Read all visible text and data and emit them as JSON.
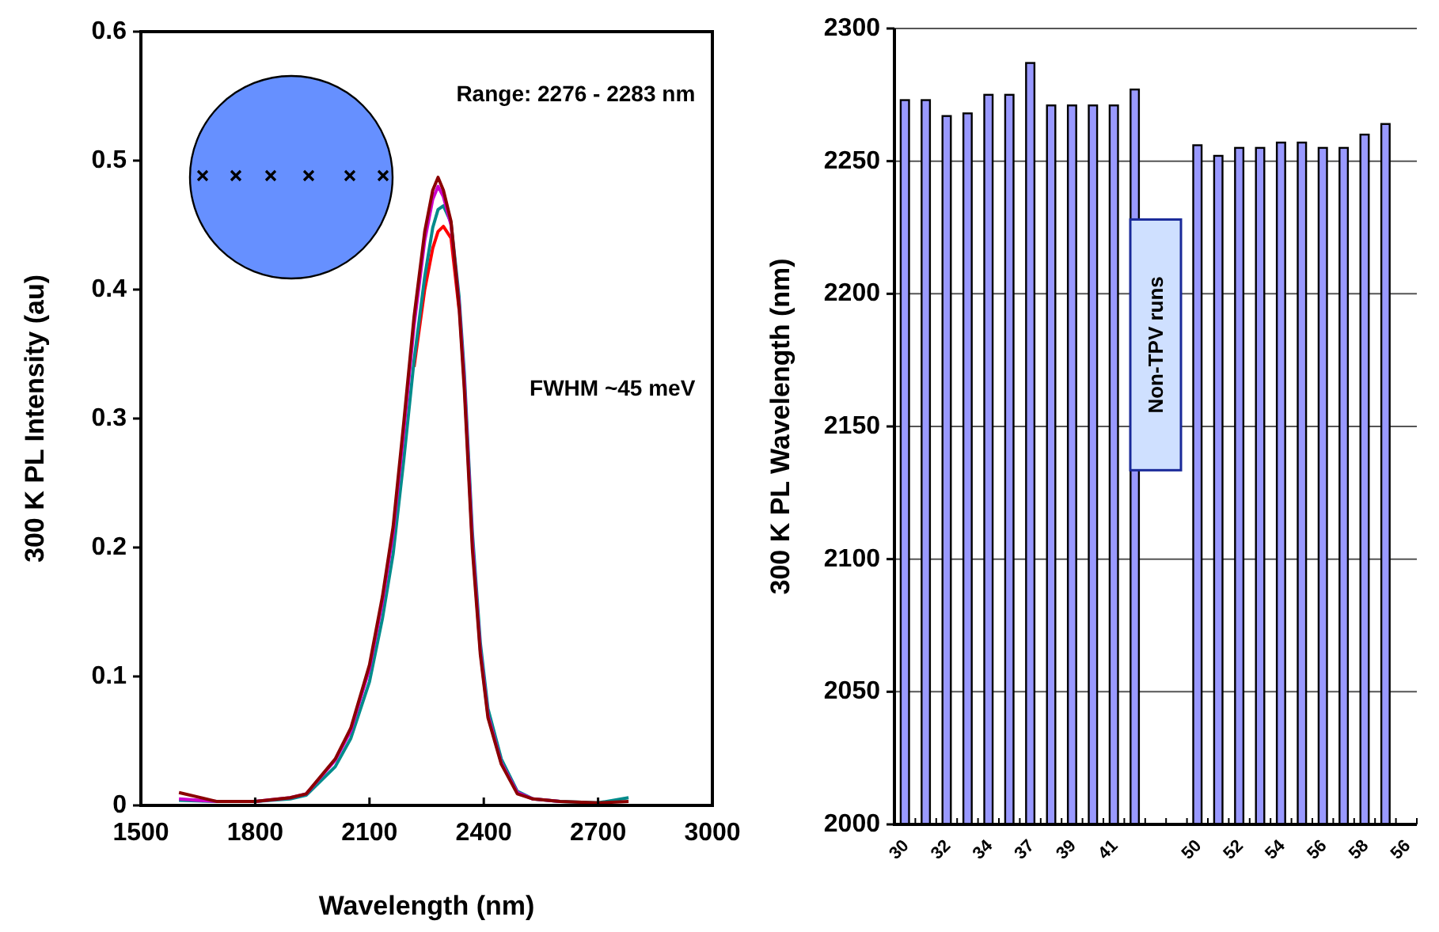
{
  "chart_data": [
    {
      "type": "line",
      "xlabel": "Wavelength (nm)",
      "ylabel": "300 K PL Intensity (au)",
      "xlim": [
        1500,
        3000
      ],
      "xticks": [
        1500,
        1800,
        2100,
        2400,
        2700,
        3000
      ],
      "ylim": [
        0,
        0.6
      ],
      "yticks": [
        0,
        0.1,
        0.2,
        0.3,
        0.4,
        0.5,
        0.6
      ],
      "line_style": "solid",
      "x": [
        1600,
        1700,
        1800,
        1892,
        1934,
        2010,
        2051,
        2100,
        2134,
        2162,
        2190,
        2217,
        2245,
        2266,
        2280,
        2294,
        2314,
        2335,
        2349,
        2370,
        2391,
        2411,
        2446,
        2488,
        2529,
        2600,
        2700,
        2780
      ],
      "series": [
        {
          "color": "#ff0000",
          "values": [
            null,
            null,
            null,
            null,
            null,
            null,
            null,
            null,
            null,
            null,
            null,
            0.34,
            0.4,
            0.432,
            0.445,
            0.449,
            0.44,
            0.385,
            null,
            null,
            null,
            null,
            null,
            null,
            null,
            null,
            null,
            null
          ]
        },
        {
          "color": "#008b8b",
          "values": [
            0.004,
            0.003,
            0.003,
            0.005,
            0.008,
            0.03,
            0.052,
            0.096,
            0.145,
            0.195,
            0.268,
            0.345,
            0.41,
            0.448,
            0.462,
            0.465,
            0.452,
            0.395,
            0.335,
            0.212,
            0.126,
            0.075,
            0.036,
            0.011,
            0.005,
            0.003,
            0.002,
            0.006
          ]
        },
        {
          "color": "#cc00cc",
          "values": [
            0.005,
            0.003,
            0.003,
            0.006,
            0.009,
            0.035,
            0.058,
            0.106,
            0.158,
            0.211,
            0.29,
            0.372,
            0.438,
            0.47,
            0.48,
            0.472,
            0.45,
            0.39,
            0.328,
            0.205,
            0.12,
            0.07,
            0.033,
            0.01,
            0.005,
            0.003,
            null,
            null
          ]
        },
        {
          "color": "#8b0000",
          "values": [
            0.01,
            0.003,
            0.003,
            0.006,
            0.009,
            0.036,
            0.06,
            0.109,
            0.162,
            0.216,
            0.297,
            0.379,
            0.445,
            0.477,
            0.487,
            0.477,
            0.453,
            0.387,
            0.322,
            0.199,
            0.117,
            0.068,
            0.032,
            0.009,
            0.005,
            0.003,
            0.002,
            0.003
          ]
        }
      ],
      "annotations": [
        "Range: 2276 - 2283 nm",
        "FWHM ~45 meV"
      ]
    },
    {
      "type": "bar",
      "ylabel": "300 K PL Wavelength (nm)",
      "ylim": [
        2000,
        2300
      ],
      "yticks": [
        2000,
        2050,
        2100,
        2150,
        2200,
        2250,
        2300
      ],
      "grid": "y",
      "categories": [
        "30",
        null,
        "32",
        null,
        "34",
        null,
        "37",
        null,
        "39",
        null,
        "41",
        null,
        null,
        null,
        "50",
        null,
        "52",
        null,
        "54",
        null,
        "56",
        null,
        "58",
        null,
        "56"
      ],
      "values": [
        2273,
        2273,
        2267,
        2268,
        2275,
        2275,
        2287,
        2271,
        2271,
        2271,
        2271,
        2277,
        null,
        null,
        2256,
        2252,
        2255,
        2255,
        2257,
        2257,
        2255,
        2255,
        2260,
        2264,
        null
      ],
      "color": "#9999ff",
      "annotations": [
        "Non-TPV runs"
      ]
    }
  ]
}
